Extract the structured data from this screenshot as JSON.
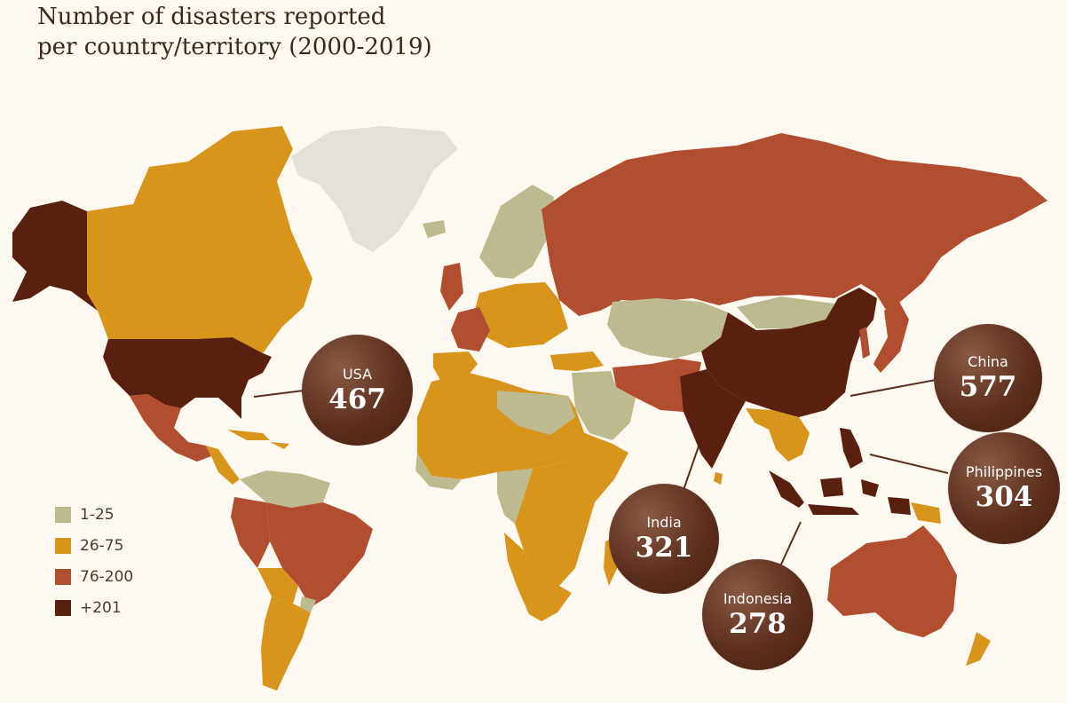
{
  "title": {
    "line1": "Number of disasters reported",
    "line2": "per country/territory (2000-2019)"
  },
  "colors": {
    "background": "#fdf9f1",
    "no_data": "#e4e1d8",
    "range_1_25": "#bcba8e",
    "range_26_75": "#d8951c",
    "range_76_200": "#b04e2f",
    "range_201_plus": "#5a200f"
  },
  "legend": [
    {
      "label": "1-25",
      "color": "#bcba8e"
    },
    {
      "label": "26-75",
      "color": "#d8951c"
    },
    {
      "label": "76-200",
      "color": "#b04e2f"
    },
    {
      "label": "+201",
      "color": "#5a200f"
    }
  ],
  "callouts": {
    "usa": {
      "name": "USA",
      "value": "467"
    },
    "china": {
      "name": "China",
      "value": "577"
    },
    "philippines": {
      "name": "Philippines",
      "value": "304"
    },
    "india": {
      "name": "India",
      "value": "321"
    },
    "indonesia": {
      "name": "Indonesia",
      "value": "278"
    }
  }
}
